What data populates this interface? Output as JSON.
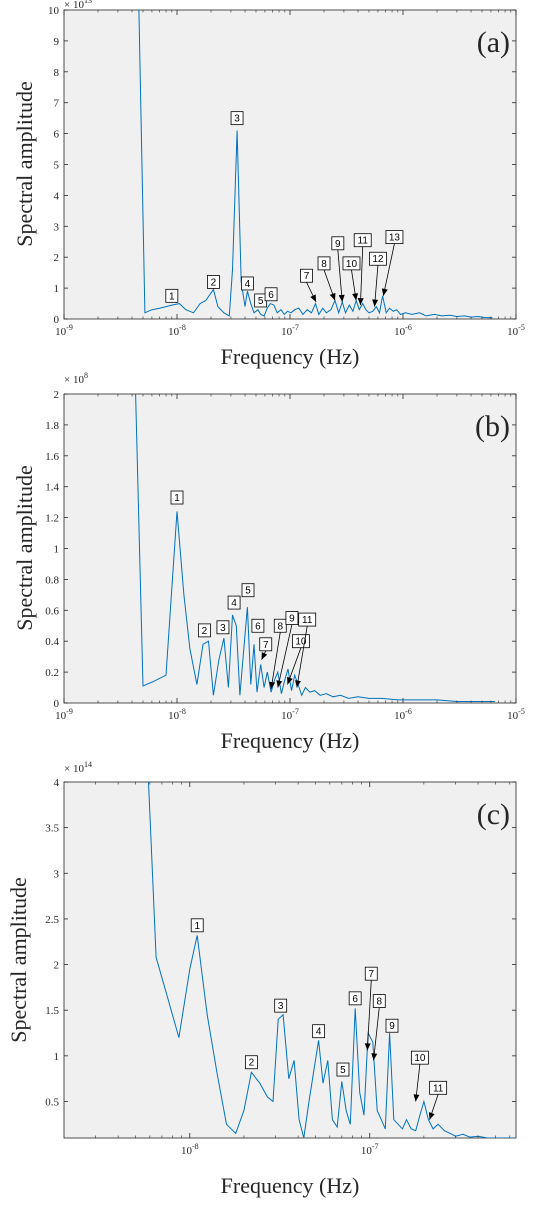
{
  "chart_data": [
    {
      "type": "line",
      "panel_label": "(a)",
      "xlabel": "Frequency  (Hz)",
      "ylabel": "Spectral amplitude",
      "x_scale": "log",
      "xlim": [
        1e-09,
        1e-05
      ],
      "x_ticks": [
        {
          "value": 1e-09,
          "label": "10-9"
        },
        {
          "value": 1e-08,
          "label": "10-8"
        },
        {
          "value": 1e-07,
          "label": "10-7"
        },
        {
          "value": 1e-06,
          "label": "10-6"
        },
        {
          "value": 1e-05,
          "label": "10-5"
        }
      ],
      "y_multiplier": "× 10^13",
      "ylim": [
        0,
        10
      ],
      "y_ticks": [
        0,
        1,
        2,
        3,
        4,
        5,
        6,
        7,
        8,
        9,
        10
      ],
      "grid": false,
      "series": [
        {
          "color": "#0072BD",
          "x": [
            4.6e-09,
            5.2e-09,
            6e-09,
            7e-09,
            8e-09,
            9e-09,
            1.05e-08,
            1.2e-08,
            1.4e-08,
            1.6e-08,
            1.8e-08,
            2.1e-08,
            2.3e-08,
            2.6e-08,
            2.9e-08,
            3.1e-08,
            3.4e-08,
            3.7e-08,
            4e-08,
            4.2e-08,
            4.5e-08,
            4.8e-08,
            5.2e-08,
            5.5e-08,
            5.9e-08,
            6.3e-08,
            6.7e-08,
            7.2e-08,
            7.7e-08,
            8.3e-08,
            8.9e-08,
            9.5e-08,
            1.02e-07,
            1.1e-07,
            1.2e-07,
            1.3e-07,
            1.42e-07,
            1.55e-07,
            1.68e-07,
            1.8e-07,
            1.95e-07,
            2.1e-07,
            2.3e-07,
            2.5e-07,
            2.7e-07,
            2.9e-07,
            3.1e-07,
            3.35e-07,
            3.6e-07,
            3.85e-07,
            4.1e-07,
            4.4e-07,
            4.7e-07,
            5e-07,
            5.4e-07,
            5.8e-07,
            6.2e-07,
            6.6e-07,
            7.1e-07,
            7.6e-07,
            8.2e-07,
            8.8e-07,
            9.5e-07,
            1.05e-06,
            1.2e-06,
            1.4e-06,
            1.6e-06,
            1.9e-06,
            2.2e-06,
            2.6e-06,
            3e-06,
            3.5e-06,
            4e-06,
            4.6e-06,
            5.3e-06,
            6.2e-06
          ],
          "y": [
            10,
            0.2,
            0.3,
            0.35,
            0.4,
            0.45,
            0.5,
            0.3,
            0.2,
            0.5,
            0.6,
            0.95,
            0.4,
            0.2,
            0.1,
            1.6,
            6.1,
            1.2,
            0.4,
            0.9,
            0.5,
            0.2,
            0.3,
            0.15,
            0.1,
            0.35,
            0.5,
            0.45,
            0.2,
            0.3,
            0.15,
            0.25,
            0.2,
            0.3,
            0.35,
            0.15,
            0.3,
            0.2,
            0.5,
            0.15,
            0.35,
            0.2,
            0.3,
            0.6,
            0.2,
            0.55,
            0.2,
            0.45,
            0.25,
            0.6,
            0.3,
            0.5,
            0.3,
            0.2,
            0.25,
            0.4,
            0.2,
            0.75,
            0.2,
            0.35,
            0.25,
            0.3,
            0.15,
            0.2,
            0.15,
            0.2,
            0.1,
            0.15,
            0.1,
            0.12,
            0.08,
            0.1,
            0.06,
            0.08,
            0.05,
            0.04
          ]
        }
      ],
      "annotations": [
        {
          "text": "1",
          "x": 9e-09,
          "y": 0.75
        },
        {
          "text": "2",
          "x": 2.1e-08,
          "y": 1.2
        },
        {
          "text": "3",
          "x": 3.4e-08,
          "y": 6.5
        },
        {
          "text": "4",
          "x": 4.2e-08,
          "y": 1.15
        },
        {
          "text": "5",
          "x": 5.5e-08,
          "y": 0.6
        },
        {
          "text": "6",
          "x": 6.8e-08,
          "y": 0.8
        },
        {
          "text": "7",
          "x": 1.4e-07,
          "y": 1.4,
          "arrow_to": {
            "x": 1.7e-07,
            "y": 0.55
          }
        },
        {
          "text": "8",
          "x": 2e-07,
          "y": 1.8,
          "arrow_to": {
            "x": 2.5e-07,
            "y": 0.6
          }
        },
        {
          "text": "9",
          "x": 2.65e-07,
          "y": 2.45,
          "arrow_to": {
            "x": 2.9e-07,
            "y": 0.55
          }
        },
        {
          "text": "10",
          "x": 3.5e-07,
          "y": 1.8,
          "arrow_to": {
            "x": 3.85e-07,
            "y": 0.6
          }
        },
        {
          "text": "11",
          "x": 4.4e-07,
          "y": 2.55,
          "arrow_to": {
            "x": 4.2e-07,
            "y": 0.45
          }
        },
        {
          "text": "12",
          "x": 6e-07,
          "y": 1.95,
          "arrow_to": {
            "x": 5.6e-07,
            "y": 0.4
          }
        },
        {
          "text": "13",
          "x": 8.4e-07,
          "y": 2.65,
          "arrow_to": {
            "x": 6.7e-07,
            "y": 0.75
          }
        }
      ]
    },
    {
      "type": "line",
      "panel_label": "(b)",
      "xlabel": "Frequency  (Hz)",
      "ylabel": "Spectral amplitude",
      "x_scale": "log",
      "xlim": [
        1e-09,
        1e-05
      ],
      "x_ticks": [
        {
          "value": 1e-09,
          "label": "10-9"
        },
        {
          "value": 1e-08,
          "label": "10-8"
        },
        {
          "value": 1e-07,
          "label": "10-7"
        },
        {
          "value": 1e-06,
          "label": "10-6"
        },
        {
          "value": 1e-05,
          "label": "10-5"
        }
      ],
      "y_multiplier": "× 10^8",
      "ylim": [
        0,
        2
      ],
      "y_ticks": [
        0,
        0.2,
        0.4,
        0.6,
        0.8,
        1,
        1.2,
        1.4,
        1.6,
        1.8,
        2
      ],
      "grid": false,
      "series": [
        {
          "color": "#0072BD",
          "x": [
            4.3e-09,
            5e-09,
            6.2e-09,
            8e-09,
            1e-08,
            1.15e-08,
            1.3e-08,
            1.5e-08,
            1.7e-08,
            1.9e-08,
            2.1e-08,
            2.35e-08,
            2.6e-08,
            2.85e-08,
            3.1e-08,
            3.35e-08,
            3.6e-08,
            3.9e-08,
            4.2e-08,
            4.5e-08,
            4.8e-08,
            5.1e-08,
            5.5e-08,
            5.9e-08,
            6.3e-08,
            6.8e-08,
            7.3e-08,
            7.8e-08,
            8.4e-08,
            9e-08,
            9.6e-08,
            1.03e-07,
            1.1e-07,
            1.18e-07,
            1.27e-07,
            1.37e-07,
            1.5e-07,
            1.65e-07,
            1.85e-07,
            2.1e-07,
            2.4e-07,
            2.8e-07,
            3.3e-07,
            4e-07,
            5e-07,
            6.5e-07,
            9e-07,
            1.3e-06,
            2e-06,
            3e-06,
            4.5e-06,
            6.5e-06
          ],
          "y": [
            2,
            0.11,
            0.14,
            0.18,
            1.24,
            0.7,
            0.35,
            0.12,
            0.38,
            0.4,
            0.05,
            0.28,
            0.42,
            0.1,
            0.57,
            0.5,
            0.05,
            0.35,
            0.62,
            0.12,
            0.38,
            0.07,
            0.25,
            0.1,
            0.2,
            0.07,
            0.15,
            0.2,
            0.06,
            0.15,
            0.22,
            0.08,
            0.18,
            0.12,
            0.05,
            0.1,
            0.07,
            0.08,
            0.05,
            0.06,
            0.04,
            0.05,
            0.03,
            0.04,
            0.03,
            0.03,
            0.02,
            0.02,
            0.02,
            0.01,
            0.01,
            0.01
          ]
        }
      ],
      "annotations": [
        {
          "text": "1",
          "x": 1e-08,
          "y": 1.33
        },
        {
          "text": "2",
          "x": 1.75e-08,
          "y": 0.47
        },
        {
          "text": "3",
          "x": 2.55e-08,
          "y": 0.49
        },
        {
          "text": "4",
          "x": 3.2e-08,
          "y": 0.65
        },
        {
          "text": "5",
          "x": 4.25e-08,
          "y": 0.73
        },
        {
          "text": "6",
          "x": 5.2e-08,
          "y": 0.5
        },
        {
          "text": "7",
          "x": 6.1e-08,
          "y": 0.38,
          "arrow_to": {
            "x": 5.6e-08,
            "y": 0.28
          }
        },
        {
          "text": "8",
          "x": 8.2e-08,
          "y": 0.5,
          "arrow_to": {
            "x": 6.8e-08,
            "y": 0.09
          }
        },
        {
          "text": "9",
          "x": 1.04e-07,
          "y": 0.55,
          "arrow_to": {
            "x": 7.8e-08,
            "y": 0.1
          }
        },
        {
          "text": "10",
          "x": 1.25e-07,
          "y": 0.4,
          "arrow_to": {
            "x": 9.5e-08,
            "y": 0.12
          }
        },
        {
          "text": "11",
          "x": 1.42e-07,
          "y": 0.54,
          "arrow_to": {
            "x": 1.15e-07,
            "y": 0.1
          }
        }
      ]
    },
    {
      "type": "line",
      "panel_label": "(c)",
      "xlabel": "Frequency  (Hz)",
      "ylabel": "Spectral amplitude",
      "x_scale": "log",
      "xlim": [
        2e-09,
        6.5e-07
      ],
      "x_ticks": [
        {
          "value": 1e-08,
          "label": "10-8"
        },
        {
          "value": 1e-07,
          "label": "10-7"
        }
      ],
      "y_multiplier": "× 10^14",
      "ylim": [
        0.1,
        4
      ],
      "y_ticks": [
        0.5,
        1,
        1.5,
        2,
        2.5,
        3,
        3.5,
        4
      ],
      "grid": false,
      "series": [
        {
          "color": "#0072BD",
          "x": [
            5.9e-09,
            6.5e-09,
            7.5e-09,
            8.7e-09,
            1e-08,
            1.1e-08,
            1.25e-08,
            1.42e-08,
            1.6e-08,
            1.8e-08,
            2e-08,
            2.2e-08,
            2.45e-08,
            2.7e-08,
            2.9e-08,
            3.1e-08,
            3.3e-08,
            3.55e-08,
            3.8e-08,
            4.05e-08,
            4.3e-08,
            4.6e-08,
            4.9e-08,
            5.2e-08,
            5.5e-08,
            5.85e-08,
            6.2e-08,
            6.6e-08,
            7e-08,
            7.4e-08,
            7.8e-08,
            8.3e-08,
            8.8e-08,
            9.3e-08,
            9.8e-08,
            1.04e-07,
            1.1e-07,
            1.16e-07,
            1.22e-07,
            1.29e-07,
            1.36e-07,
            1.44e-07,
            1.52e-07,
            1.6e-07,
            1.7e-07,
            1.8e-07,
            1.9e-07,
            2e-07,
            2.12e-07,
            2.25e-07,
            2.4e-07,
            2.6e-07,
            2.8e-07,
            3e-07,
            3.3e-07,
            3.6e-07,
            4e-07,
            4.5e-07,
            5e-07,
            5.6e-07,
            6.3e-07
          ],
          "y": [
            4,
            2.08,
            1.65,
            1.2,
            1.95,
            2.32,
            1.45,
            0.8,
            0.25,
            0.15,
            0.4,
            0.82,
            0.7,
            0.55,
            0.5,
            1.4,
            1.45,
            0.75,
            0.95,
            0.3,
            0.1,
            0.5,
            0.85,
            1.17,
            0.7,
            0.95,
            0.3,
            0.22,
            0.72,
            0.4,
            0.25,
            1.52,
            0.6,
            0.35,
            1.25,
            1.15,
            0.4,
            0.3,
            0.2,
            1.25,
            0.3,
            0.25,
            0.2,
            0.3,
            0.2,
            0.18,
            0.35,
            0.5,
            0.3,
            0.2,
            0.25,
            0.18,
            0.15,
            0.12,
            0.14,
            0.11,
            0.12,
            0.1,
            0.1,
            0.1,
            0.1
          ]
        }
      ],
      "annotations": [
        {
          "text": "1",
          "x": 1.1e-08,
          "y": 2.43
        },
        {
          "text": "2",
          "x": 2.2e-08,
          "y": 0.93
        },
        {
          "text": "3",
          "x": 3.2e-08,
          "y": 1.55
        },
        {
          "text": "4",
          "x": 5.2e-08,
          "y": 1.27
        },
        {
          "text": "5",
          "x": 7.1e-08,
          "y": 0.85
        },
        {
          "text": "6",
          "x": 8.3e-08,
          "y": 1.63
        },
        {
          "text": "7",
          "x": 1.02e-07,
          "y": 1.9,
          "arrow_to": {
            "x": 9.7e-08,
            "y": 1.06
          }
        },
        {
          "text": "8",
          "x": 1.13e-07,
          "y": 1.6,
          "arrow_to": {
            "x": 1.05e-07,
            "y": 0.95
          }
        },
        {
          "text": "9",
          "x": 1.33e-07,
          "y": 1.33
        },
        {
          "text": "10",
          "x": 1.9e-07,
          "y": 0.98,
          "arrow_to": {
            "x": 1.8e-07,
            "y": 0.5
          }
        },
        {
          "text": "11",
          "x": 2.4e-07,
          "y": 0.65,
          "arrow_to": {
            "x": 2.15e-07,
            "y": 0.3
          }
        }
      ]
    }
  ]
}
